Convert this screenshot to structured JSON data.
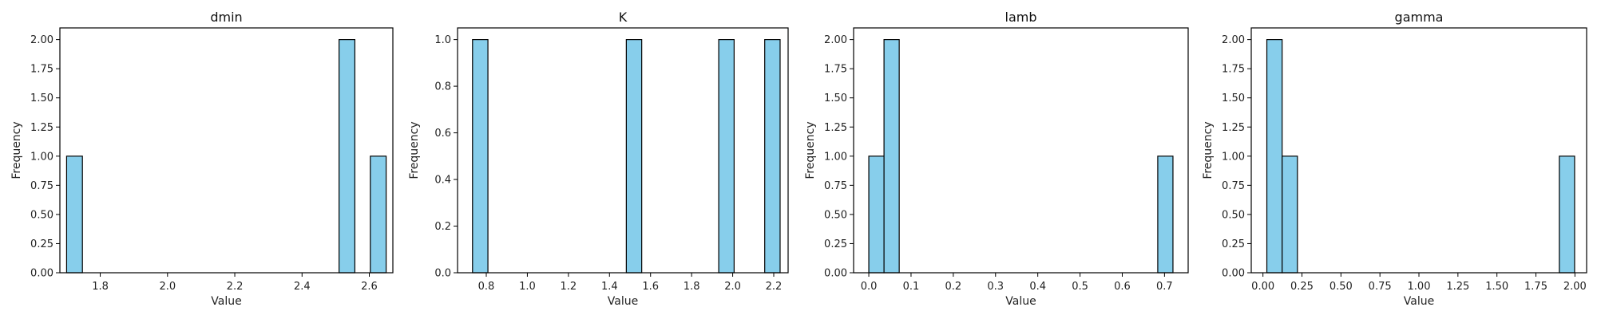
{
  "figure": {
    "bar_color": "#87ceeb",
    "edge_color": "#000000"
  },
  "chart_data": [
    {
      "type": "bar",
      "title": "dmin",
      "xlabel": "Value",
      "ylabel": "Frequency",
      "xlim": [
        1.68,
        2.67
      ],
      "ylim": [
        0,
        2.1
      ],
      "xticks": [
        1.8,
        2.0,
        2.2,
        2.4,
        2.6
      ],
      "xtick_labels": [
        "1.8",
        "2.0",
        "2.2",
        "2.4",
        "2.6"
      ],
      "yticks": [
        0,
        0.25,
        0.5,
        0.75,
        1.0,
        1.25,
        1.5,
        1.75,
        2.0
      ],
      "ytick_labels": [
        "0.00",
        "0.25",
        "0.50",
        "0.75",
        "1.00",
        "1.25",
        "1.50",
        "1.75",
        "2.00"
      ],
      "bins": [
        {
          "x0": 1.7,
          "x1": 1.747,
          "value": 1
        },
        {
          "x0": 2.51,
          "x1": 2.557,
          "value": 2
        },
        {
          "x0": 2.603,
          "x1": 2.65,
          "value": 1
        }
      ]
    },
    {
      "type": "bar",
      "title": "K",
      "xlabel": "Value",
      "ylabel": "Frequency",
      "xlim": [
        0.66,
        2.27
      ],
      "ylim": [
        0,
        1.05
      ],
      "xticks": [
        0.8,
        1.0,
        1.2,
        1.4,
        1.6,
        1.8,
        2.0,
        2.2
      ],
      "xtick_labels": [
        "0.8",
        "1.0",
        "1.2",
        "1.4",
        "1.6",
        "1.8",
        "2.0",
        "2.2"
      ],
      "yticks": [
        0,
        0.2,
        0.4,
        0.6,
        0.8,
        1.0
      ],
      "ytick_labels": [
        "0.0",
        "0.2",
        "0.4",
        "0.6",
        "0.8",
        "1.0"
      ],
      "bins": [
        {
          "x0": 0.733,
          "x1": 0.808,
          "value": 1
        },
        {
          "x0": 1.482,
          "x1": 1.557,
          "value": 1
        },
        {
          "x0": 1.932,
          "x1": 2.007,
          "value": 1
        },
        {
          "x0": 2.156,
          "x1": 2.231,
          "value": 1
        }
      ]
    },
    {
      "type": "bar",
      "title": "lamb",
      "xlabel": "Value",
      "ylabel": "Frequency",
      "xlim": [
        -0.036,
        0.756
      ],
      "ylim": [
        0,
        2.1
      ],
      "xticks": [
        0.0,
        0.1,
        0.2,
        0.3,
        0.4,
        0.5,
        0.6,
        0.7
      ],
      "xtick_labels": [
        "0.0",
        "0.1",
        "0.2",
        "0.3",
        "0.4",
        "0.5",
        "0.6",
        "0.7"
      ],
      "yticks": [
        0,
        0.25,
        0.5,
        0.75,
        1.0,
        1.25,
        1.5,
        1.75,
        2.0
      ],
      "ytick_labels": [
        "0.00",
        "0.25",
        "0.50",
        "0.75",
        "1.00",
        "1.25",
        "1.50",
        "1.75",
        "2.00"
      ],
      "bins": [
        {
          "x0": 0.0,
          "x1": 0.036,
          "value": 1
        },
        {
          "x0": 0.036,
          "x1": 0.072,
          "value": 2
        },
        {
          "x0": 0.684,
          "x1": 0.72,
          "value": 1
        }
      ]
    },
    {
      "type": "bar",
      "title": "gamma",
      "xlabel": "Value",
      "ylabel": "Frequency",
      "xlim": [
        -0.075,
        2.075
      ],
      "ylim": [
        0,
        2.1
      ],
      "xticks": [
        0.0,
        0.25,
        0.5,
        0.75,
        1.0,
        1.25,
        1.5,
        1.75,
        2.0
      ],
      "xtick_labels": [
        "0.00",
        "0.25",
        "0.50",
        "0.75",
        "1.00",
        "1.25",
        "1.50",
        "1.75",
        "2.00"
      ],
      "yticks": [
        0,
        0.25,
        0.5,
        0.75,
        1.0,
        1.25,
        1.5,
        1.75,
        2.0
      ],
      "ytick_labels": [
        "0.00",
        "0.25",
        "0.50",
        "0.75",
        "1.00",
        "1.25",
        "1.50",
        "1.75",
        "2.00"
      ],
      "bins": [
        {
          "x0": 0.025,
          "x1": 0.123,
          "value": 2
        },
        {
          "x0": 0.123,
          "x1": 0.221,
          "value": 1
        },
        {
          "x0": 1.9,
          "x1": 1.998,
          "value": 1
        }
      ]
    }
  ]
}
